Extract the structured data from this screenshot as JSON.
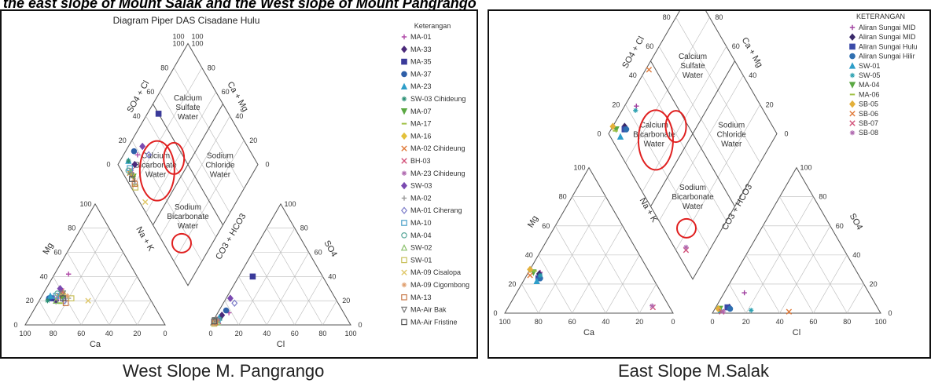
{
  "page": {
    "heading": "the east slope of Mount Salak and the West slope of Mount Pangrango",
    "captions": {
      "left": "West Slope M. Pangrango",
      "right": "East Slope M.Salak"
    }
  },
  "chart_data": [
    {
      "type": "scatter",
      "subtype": "piper-diagram",
      "title": "Diagram Piper DAS Cisadane Hulu",
      "legend_title": "Keterangan",
      "legend_placement": "right",
      "axes": {
        "cation_base": "Ca",
        "cation_left": "Mg",
        "cation_right": "Na + K",
        "anion_base": "Cl",
        "anion_left": "CO3 + HCO3",
        "anion_right": "SO4",
        "diamond_upper_left": "SO4 + Cl",
        "diamond_upper_right": "Ca + Mg"
      },
      "tick_labels": [
        "0",
        "20",
        "40",
        "60",
        "80",
        "100"
      ],
      "zones": [
        "Calcium Sulfate Water",
        "Calcium Bicarbonate Water",
        "Sodium Chloride Water",
        "Sodium Bicarbonate Water"
      ],
      "circled_zones": [
        "Calcium Sulfate Water",
        "Calcium Bicarbonate Water",
        "Sodium Bicarbonate Water"
      ],
      "series": [
        {
          "name": "MA-01",
          "marker": "plus",
          "color": "#b04aa8",
          "cation": {
            "ca": 48,
            "mg": 42
          },
          "anion": {
            "cl": 8,
            "so4": 10
          }
        },
        {
          "name": "MA-33",
          "marker": "diamond",
          "color": "#4b2a7a",
          "cation": {
            "ca": 68,
            "mg": 20
          },
          "anion": {
            "cl": 4,
            "so4": 8
          }
        },
        {
          "name": "MA-35",
          "marker": "square",
          "color": "#3a3a9a",
          "cation": {
            "ca": 70,
            "mg": 22
          },
          "anion": {
            "cl": 10,
            "so4": 40
          }
        },
        {
          "name": "MA-37",
          "marker": "circle",
          "color": "#2f5fa8",
          "cation": {
            "ca": 72,
            "mg": 22
          },
          "anion": {
            "cl": 5,
            "so4": 12
          }
        },
        {
          "name": "MA-23",
          "marker": "triangle",
          "color": "#2f9ec9",
          "cation": {
            "ca": 70,
            "mg": 24
          },
          "anion": {
            "cl": 3,
            "so4": 6
          }
        },
        {
          "name": "SW-03 Cihideung",
          "marker": "star",
          "color": "#2a8f74",
          "cation": {
            "ca": 74,
            "mg": 20
          },
          "anion": {
            "cl": 4,
            "so4": 5
          }
        },
        {
          "name": "MA-07",
          "marker": "triangle-down",
          "color": "#5ba843",
          "cation": {
            "ca": 62,
            "mg": 22
          },
          "anion": {
            "cl": 2,
            "so4": 4
          }
        },
        {
          "name": "MA-17",
          "marker": "dash",
          "color": "#9fc043",
          "cation": {
            "ca": 66,
            "mg": 18
          },
          "anion": {
            "cl": 3,
            "so4": 3
          }
        },
        {
          "name": "MA-16",
          "marker": "diamond",
          "color": "#e3c13b",
          "cation": {
            "ca": 60,
            "mg": 26
          },
          "anion": {
            "cl": 2,
            "so4": 4
          }
        },
        {
          "name": "MA-02 Cihideung",
          "marker": "x",
          "color": "#e07a3a",
          "cation": {
            "ca": 64,
            "mg": 24
          },
          "anion": {
            "cl": 3,
            "so4": 2
          }
        },
        {
          "name": "BH-03",
          "marker": "x",
          "color": "#d2527a",
          "cation": {
            "ca": 60,
            "mg": 28
          },
          "anion": {
            "cl": 4,
            "so4": 3
          }
        },
        {
          "name": "MA-23 Cihideung",
          "marker": "star",
          "color": "#b06ab0",
          "cation": {
            "ca": 66,
            "mg": 22
          },
          "anion": {
            "cl": 2,
            "so4": 5
          }
        },
        {
          "name": "SW-03",
          "marker": "diamond",
          "color": "#7a4ab0",
          "cation": {
            "ca": 60,
            "mg": 30
          },
          "anion": {
            "cl": 3,
            "so4": 22
          }
        },
        {
          "name": "MA-02",
          "marker": "plus",
          "color": "#999999",
          "cation": {
            "ca": 58,
            "mg": 22
          },
          "anion": {
            "cl": 2,
            "so4": 2
          }
        },
        {
          "name": "MA-01 Ciherang",
          "marker": "diamond-open",
          "color": "#7a7ac8",
          "cation": {
            "ca": 62,
            "mg": 20
          },
          "anion": {
            "cl": 8,
            "so4": 18
          }
        },
        {
          "name": "MA-10",
          "marker": "square-open",
          "color": "#4aa0c8",
          "cation": {
            "ca": 66,
            "mg": 24
          },
          "anion": {
            "cl": 3,
            "so4": 4
          }
        },
        {
          "name": "MA-04",
          "marker": "circle-open",
          "color": "#5aa89a",
          "cation": {
            "ca": 64,
            "mg": 26
          },
          "anion": {
            "cl": 2,
            "so4": 3
          }
        },
        {
          "name": "SW-02",
          "marker": "triangle-open",
          "color": "#8ac06a",
          "cation": {
            "ca": 68,
            "mg": 20
          },
          "anion": {
            "cl": 4,
            "so4": 2
          }
        },
        {
          "name": "SW-01",
          "marker": "square-open",
          "color": "#c8c05a",
          "cation": {
            "ca": 56,
            "mg": 22
          },
          "anion": {
            "cl": 2,
            "so4": 1
          }
        },
        {
          "name": "MA-09 Cisalopa",
          "marker": "x",
          "color": "#e0c86a",
          "cation": {
            "ca": 45,
            "mg": 20
          },
          "anion": {
            "cl": 2,
            "so4": 2
          }
        },
        {
          "name": "MA-09 Cigombong",
          "marker": "star",
          "color": "#e0a070",
          "cation": {
            "ca": 58,
            "mg": 24
          },
          "anion": {
            "cl": 2,
            "so4": 3
          }
        },
        {
          "name": "MA-13",
          "marker": "square-open",
          "color": "#c87a4a",
          "cation": {
            "ca": 62,
            "mg": 18
          },
          "anion": {
            "cl": 2,
            "so4": 2
          }
        },
        {
          "name": "MA-Air Bak",
          "marker": "triangle-down-open",
          "color": "#7a7a7a",
          "cation": {
            "ca": 60,
            "mg": 26
          },
          "anion": {
            "cl": 1,
            "so4": 4
          }
        },
        {
          "name": "MA-Air Fristine",
          "marker": "square-open",
          "color": "#555555",
          "cation": {
            "ca": 62,
            "mg": 22
          },
          "anion": {
            "cl": 1,
            "so4": 3
          }
        }
      ]
    },
    {
      "type": "scatter",
      "subtype": "piper-diagram",
      "title": "",
      "legend_title": "KETERANGAN",
      "legend_placement": "top-right",
      "axes": {
        "cation_base": "Ca",
        "cation_left": "Mg",
        "cation_right": "Na + K",
        "anion_base": "Cl",
        "anion_left": "CO3 + HCO3",
        "anion_right": "SO4",
        "diamond_upper_left": "SO4 + Cl",
        "diamond_upper_right": "Ca + Mg"
      },
      "tick_labels": [
        "0",
        "20",
        "40",
        "60",
        "80",
        "100"
      ],
      "zones": [
        "Calcium Sulfate Water",
        "Calcium Bicarbonate Water",
        "Sodium Chloride Water",
        "Sodium Bicarbonate Water"
      ],
      "circled_zones": [
        "Calcium Sulfate Water",
        "Calcium Bicarbonate Water",
        "Sodium Bicarbonate Water"
      ],
      "series": [
        {
          "name": "Aliran Sungai MID",
          "marker": "plus",
          "color": "#a040a0",
          "cation": {
            "ca": 65,
            "mg": 28
          },
          "anion": {
            "cl": 12,
            "so4": 14
          }
        },
        {
          "name": "Aliran Sungai MID",
          "marker": "diamond",
          "color": "#3a2a6a",
          "cation": {
            "ca": 66,
            "mg": 27
          },
          "anion": {
            "cl": 8,
            "so4": 4
          }
        },
        {
          "name": "Aliran Sungai Hulu",
          "marker": "square",
          "color": "#3a4aa8",
          "cation": {
            "ca": 68,
            "mg": 24
          },
          "anion": {
            "cl": 7,
            "so4": 4
          }
        },
        {
          "name": "Aliran Sungai Hilir",
          "marker": "circle",
          "color": "#2f6fb0",
          "cation": {
            "ca": 67,
            "mg": 24
          },
          "anion": {
            "cl": 9,
            "so4": 3
          }
        },
        {
          "name": "SW-01",
          "marker": "triangle",
          "color": "#2f9ec9",
          "cation": {
            "ca": 70,
            "mg": 22
          },
          "anion": {
            "cl": 4,
            "so4": 2
          }
        },
        {
          "name": "SW-05",
          "marker": "star",
          "color": "#2aa0b0",
          "cation": {
            "ca": 66,
            "mg": 26
          },
          "anion": {
            "cl": 22,
            "so4": 2
          }
        },
        {
          "name": "MA-04",
          "marker": "triangle-down",
          "color": "#5ba843",
          "cation": {
            "ca": 69,
            "mg": 28
          },
          "anion": {
            "cl": 3,
            "so4": 3
          }
        },
        {
          "name": "MA-06",
          "marker": "dash",
          "color": "#9fc043",
          "cation": {
            "ca": 68,
            "mg": 29
          },
          "anion": {
            "cl": 3,
            "so4": 2
          }
        },
        {
          "name": "SB-05",
          "marker": "diamond",
          "color": "#e3b03b",
          "cation": {
            "ca": 70,
            "mg": 30
          },
          "anion": {
            "cl": 2,
            "so4": 3
          }
        },
        {
          "name": "SB-06",
          "marker": "x",
          "color": "#e07a3a",
          "cation": {
            "ca": 72,
            "mg": 26
          },
          "anion": {
            "cl": 45,
            "so4": 1
          }
        },
        {
          "name": "SB-07",
          "marker": "x",
          "color": "#d2527a",
          "cation": {
            "ca": 10,
            "mg": 4
          },
          "anion": {
            "cl": 5,
            "so4": 1
          }
        },
        {
          "name": "SB-08",
          "marker": "star",
          "color": "#b06ab0",
          "cation": {
            "ca": 10,
            "mg": 5
          },
          "anion": {
            "cl": 6,
            "so4": 1
          }
        }
      ]
    }
  ]
}
